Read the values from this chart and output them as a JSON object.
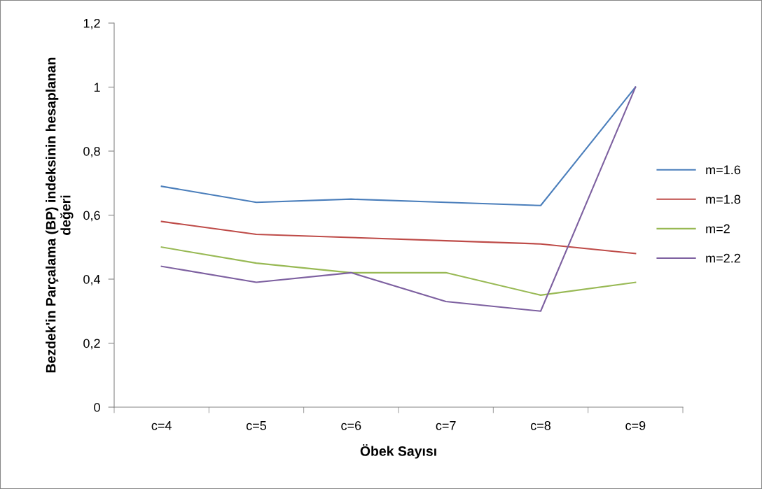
{
  "chart_data": {
    "type": "line",
    "xlabel": "Öbek Sayısı",
    "ylabel": "Bezdek'in Parçalama (BP) indeksinin hesaplanan\ndeğeri",
    "categories": [
      "c=4",
      "c=5",
      "c=6",
      "c=7",
      "c=8",
      "c=9"
    ],
    "series": [
      {
        "name": "m=1.6",
        "color": "#4a7ebb",
        "values": [
          0.69,
          0.64,
          0.65,
          0.64,
          0.63,
          1.0
        ]
      },
      {
        "name": "m=1.8",
        "color": "#be4b48",
        "values": [
          0.58,
          0.54,
          0.53,
          0.52,
          0.51,
          0.48
        ]
      },
      {
        "name": "m=2",
        "color": "#98b954",
        "values": [
          0.5,
          0.45,
          0.42,
          0.42,
          0.35,
          0.39
        ]
      },
      {
        "name": "m=2.2",
        "color": "#7d60a0",
        "values": [
          0.44,
          0.39,
          0.42,
          0.33,
          0.3,
          1.0
        ]
      }
    ],
    "ylim": [
      0,
      1.2
    ],
    "yticks": [
      0,
      {
        "value": 0.2,
        "label": "0,2"
      },
      {
        "value": 0.4,
        "label": "0,4"
      },
      {
        "value": 0.6,
        "label": "0,6"
      },
      {
        "value": 0.8,
        "label": "0,8"
      },
      1,
      {
        "value": 1.2,
        "label": "1,2"
      }
    ],
    "grid": false,
    "legend": "right",
    "marker": "none",
    "line_style": "solid"
  }
}
